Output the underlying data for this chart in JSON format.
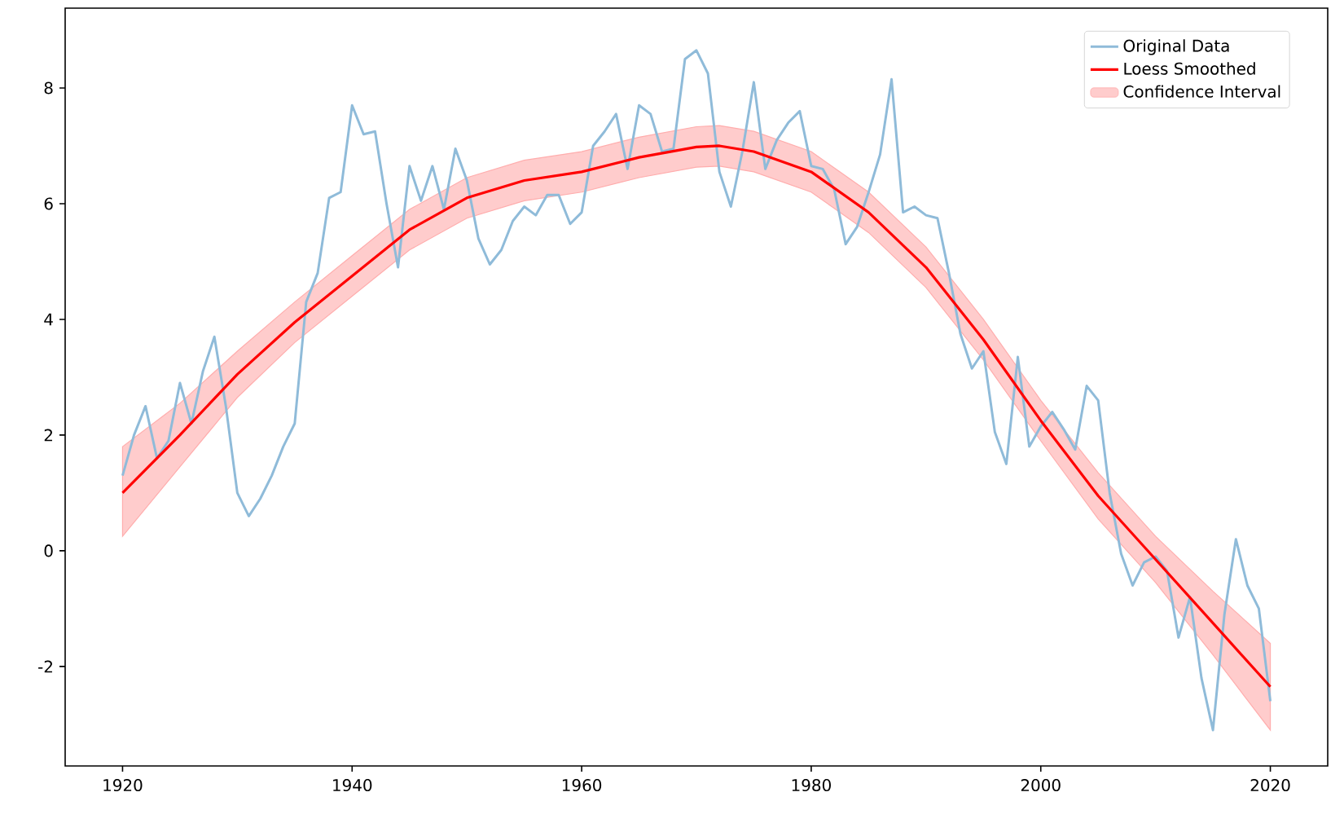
{
  "chart_data": {
    "type": "line",
    "legend": "top right",
    "xlim": [
      1915,
      2025
    ],
    "ylim": [
      -3.72,
      9.38
    ],
    "xticks": [
      1920,
      1940,
      1960,
      1980,
      2000,
      2020
    ],
    "yticks": [
      -2,
      0,
      2,
      4,
      6,
      8
    ],
    "series": [
      {
        "name": "Original Data",
        "color": "#8fbbd9",
        "x": [
          1920,
          1921,
          1922,
          1923,
          1924,
          1925,
          1926,
          1927,
          1928,
          1929,
          1930,
          1931,
          1932,
          1933,
          1934,
          1935,
          1936,
          1937,
          1938,
          1939,
          1940,
          1941,
          1942,
          1943,
          1944,
          1945,
          1946,
          1947,
          1948,
          1949,
          1950,
          1951,
          1952,
          1953,
          1954,
          1955,
          1956,
          1957,
          1958,
          1959,
          1960,
          1961,
          1962,
          1963,
          1964,
          1965,
          1966,
          1967,
          1968,
          1969,
          1970,
          1971,
          1972,
          1973,
          1974,
          1975,
          1976,
          1977,
          1978,
          1979,
          1980,
          1981,
          1982,
          1983,
          1984,
          1985,
          1986,
          1987,
          1988,
          1989,
          1990,
          1991,
          1992,
          1993,
          1994,
          1995,
          1996,
          1997,
          1998,
          1999,
          2000,
          2001,
          2002,
          2003,
          2004,
          2005,
          2006,
          2007,
          2008,
          2009,
          2010,
          2011,
          2012,
          2013,
          2014,
          2015,
          2016,
          2017,
          2018,
          2019,
          2020
        ],
        "values": [
          1.3,
          2.0,
          2.5,
          1.6,
          1.9,
          2.9,
          2.2,
          3.1,
          3.7,
          2.5,
          1.0,
          0.6,
          0.9,
          1.3,
          1.8,
          2.2,
          4.3,
          4.8,
          6.1,
          6.2,
          7.7,
          7.2,
          7.25,
          6.0,
          4.9,
          6.65,
          6.05,
          6.65,
          5.9,
          6.95,
          6.4,
          5.4,
          4.95,
          5.2,
          5.7,
          5.95,
          5.8,
          6.15,
          6.15,
          5.65,
          5.85,
          7.0,
          7.25,
          7.55,
          6.6,
          7.7,
          7.55,
          6.9,
          6.95,
          8.5,
          8.65,
          8.25,
          6.55,
          5.95,
          6.9,
          8.1,
          6.6,
          7.1,
          7.4,
          7.6,
          6.65,
          6.6,
          6.25,
          5.3,
          5.6,
          6.2,
          6.85,
          8.15,
          5.85,
          5.95,
          5.8,
          5.75,
          4.8,
          3.75,
          3.15,
          3.45,
          2.05,
          1.5,
          3.35,
          1.8,
          2.15,
          2.4,
          2.1,
          1.75,
          2.85,
          2.6,
          1.0,
          -0.05,
          -0.6,
          -0.2,
          -0.1,
          -0.35,
          -1.5,
          -0.8,
          -2.2,
          -3.1,
          -1.1,
          0.2,
          -0.6,
          -1.0,
          -2.6
        ]
      },
      {
        "name": "Loess Smoothed",
        "color": "#ff0000",
        "x": [
          1920,
          1925,
          1930,
          1935,
          1940,
          1945,
          1950,
          1955,
          1960,
          1965,
          1970,
          1972,
          1975,
          1980,
          1985,
          1990,
          1995,
          2000,
          2005,
          2010,
          2015,
          2020
        ],
        "values": [
          1.0,
          2.0,
          3.05,
          3.95,
          4.75,
          5.55,
          6.1,
          6.4,
          6.55,
          6.8,
          6.98,
          7.0,
          6.9,
          6.55,
          5.85,
          4.9,
          3.65,
          2.25,
          0.95,
          -0.15,
          -1.25,
          -2.35
        ],
        "lower": [
          0.25,
          1.45,
          2.65,
          3.6,
          4.4,
          5.2,
          5.75,
          6.05,
          6.2,
          6.45,
          6.63,
          6.65,
          6.55,
          6.2,
          5.5,
          4.55,
          3.3,
          1.9,
          0.55,
          -0.55,
          -1.8,
          -3.1
        ],
        "upper": [
          1.8,
          2.55,
          3.45,
          4.3,
          5.1,
          5.9,
          6.45,
          6.75,
          6.9,
          7.15,
          7.33,
          7.35,
          7.25,
          6.9,
          6.2,
          5.25,
          4.0,
          2.6,
          1.35,
          0.25,
          -0.7,
          -1.6
        ]
      },
      {
        "name": "Confidence Interval",
        "type": "area",
        "color": "#ffcccc"
      }
    ]
  }
}
